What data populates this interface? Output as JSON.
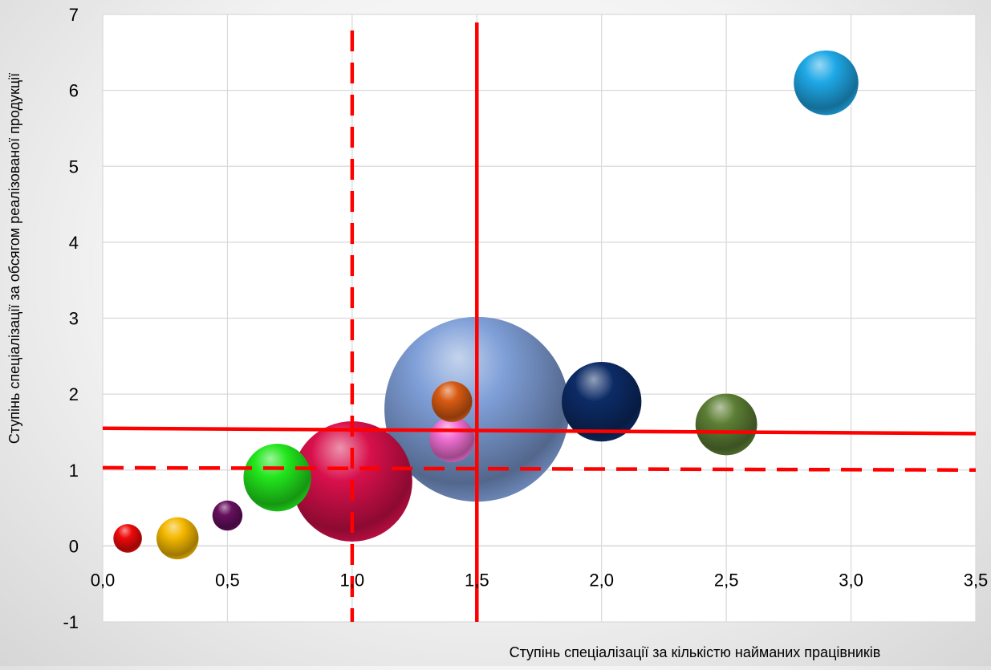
{
  "chart_data": {
    "type": "bubble",
    "title": "",
    "xlabel": "Ступінь спеціалізації за кількістю найманих працівників",
    "ylabel": "Ступінь спеціалізації за обсягом реалізованої  продукції",
    "xlim": [
      0,
      3.5
    ],
    "ylim": [
      -1,
      7
    ],
    "x_ticks": [
      0,
      0.5,
      1.0,
      1.5,
      2.0,
      2.5,
      3.0,
      3.5
    ],
    "x_tick_labels": [
      "0,0",
      "0,5",
      "1,0",
      "1,5",
      "2,0",
      "2,5",
      "3,0",
      "3,5"
    ],
    "y_ticks": [
      -1,
      0,
      1,
      2,
      3,
      4,
      5,
      6,
      7
    ],
    "y_tick_labels": [
      "-1",
      "0",
      "1",
      "2",
      "3",
      "4",
      "5",
      "6",
      "7"
    ],
    "grid": true,
    "legend": "none",
    "points": [
      {
        "x": 1.5,
        "y": 1.8,
        "size": 123,
        "color": "#7f9fd8"
      },
      {
        "x": 1.0,
        "y": 0.85,
        "size": 80,
        "color": "#d8104c"
      },
      {
        "x": 2.0,
        "y": 1.9,
        "size": 53,
        "color": "#0c2b66"
      },
      {
        "x": 0.7,
        "y": 0.9,
        "size": 45,
        "color": "#22e61c"
      },
      {
        "x": 2.5,
        "y": 1.6,
        "size": 41,
        "color": "#5c7e34"
      },
      {
        "x": 2.9,
        "y": 6.1,
        "size": 43,
        "color": "#1ea8e6"
      },
      {
        "x": 1.4,
        "y": 1.4,
        "size": 30,
        "color": "#f06fd2"
      },
      {
        "x": 1.4,
        "y": 1.9,
        "size": 27,
        "color": "#d85a12"
      },
      {
        "x": 0.3,
        "y": 0.1,
        "size": 28,
        "color": "#f4b800"
      },
      {
        "x": 0.5,
        "y": 0.4,
        "size": 20,
        "color": "#66105e"
      },
      {
        "x": 0.1,
        "y": 0.1,
        "size": 19,
        "color": "#ee0a0a"
      }
    ],
    "reference_lines": [
      {
        "orientation": "vertical",
        "value": 1.0,
        "style": "dashed",
        "color": "#ff0000"
      },
      {
        "orientation": "vertical",
        "value": 1.5,
        "style": "solid",
        "color": "#ff0000"
      },
      {
        "orientation": "horizontal",
        "from": 1.55,
        "to": 1.48,
        "style": "solid",
        "color": "#ff0000"
      },
      {
        "orientation": "horizontal",
        "from": 1.03,
        "to": 1.0,
        "style": "dashed",
        "color": "#ff0000"
      }
    ]
  }
}
